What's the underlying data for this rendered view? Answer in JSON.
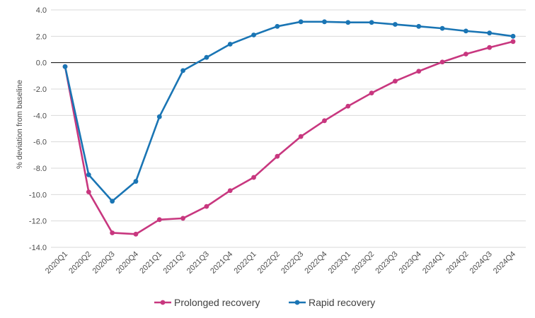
{
  "chart_data": {
    "type": "line",
    "title": "",
    "xlabel": "",
    "ylabel": "% deviation from baseline",
    "ylim": [
      -14,
      4
    ],
    "yticks": [
      4.0,
      2.0,
      0.0,
      -2.0,
      -4.0,
      -6.0,
      -8.0,
      -10.0,
      -12.0,
      -14.0
    ],
    "ytick_labels": [
      "4.0",
      "2.0",
      "0.0",
      "-2.0",
      "-4.0",
      "-6.0",
      "-8.0",
      "-10.0",
      "-12.0",
      "-14.0"
    ],
    "grid": "horizontal",
    "legend_position": "bottom",
    "categories": [
      "2020Q1",
      "2020Q2",
      "2020Q3",
      "2020Q4",
      "2021Q1",
      "2021Q2",
      "2021Q3",
      "2021Q4",
      "2022Q1",
      "2022Q2",
      "2022Q3",
      "2022Q4",
      "2023Q1",
      "2023Q2",
      "2023Q3",
      "2023Q4",
      "2024Q1",
      "2024Q2",
      "2024Q3",
      "2024Q4"
    ],
    "series": [
      {
        "name": "Prolonged recovery",
        "color": "#c8377f",
        "values": [
          -0.3,
          -9.8,
          -12.9,
          -13.0,
          -11.9,
          -11.8,
          -10.9,
          -9.7,
          -8.7,
          -7.1,
          -5.6,
          -4.4,
          -3.3,
          -2.3,
          -1.4,
          -0.65,
          0.05,
          0.65,
          1.15,
          1.6
        ]
      },
      {
        "name": "Rapid recovery",
        "color": "#1a75b4",
        "values": [
          -0.3,
          -8.5,
          -10.5,
          -9.0,
          -4.1,
          -0.6,
          0.4,
          1.4,
          2.1,
          2.75,
          3.1,
          3.1,
          3.05,
          3.05,
          2.9,
          2.75,
          2.6,
          2.4,
          2.25,
          2.0
        ]
      }
    ]
  }
}
